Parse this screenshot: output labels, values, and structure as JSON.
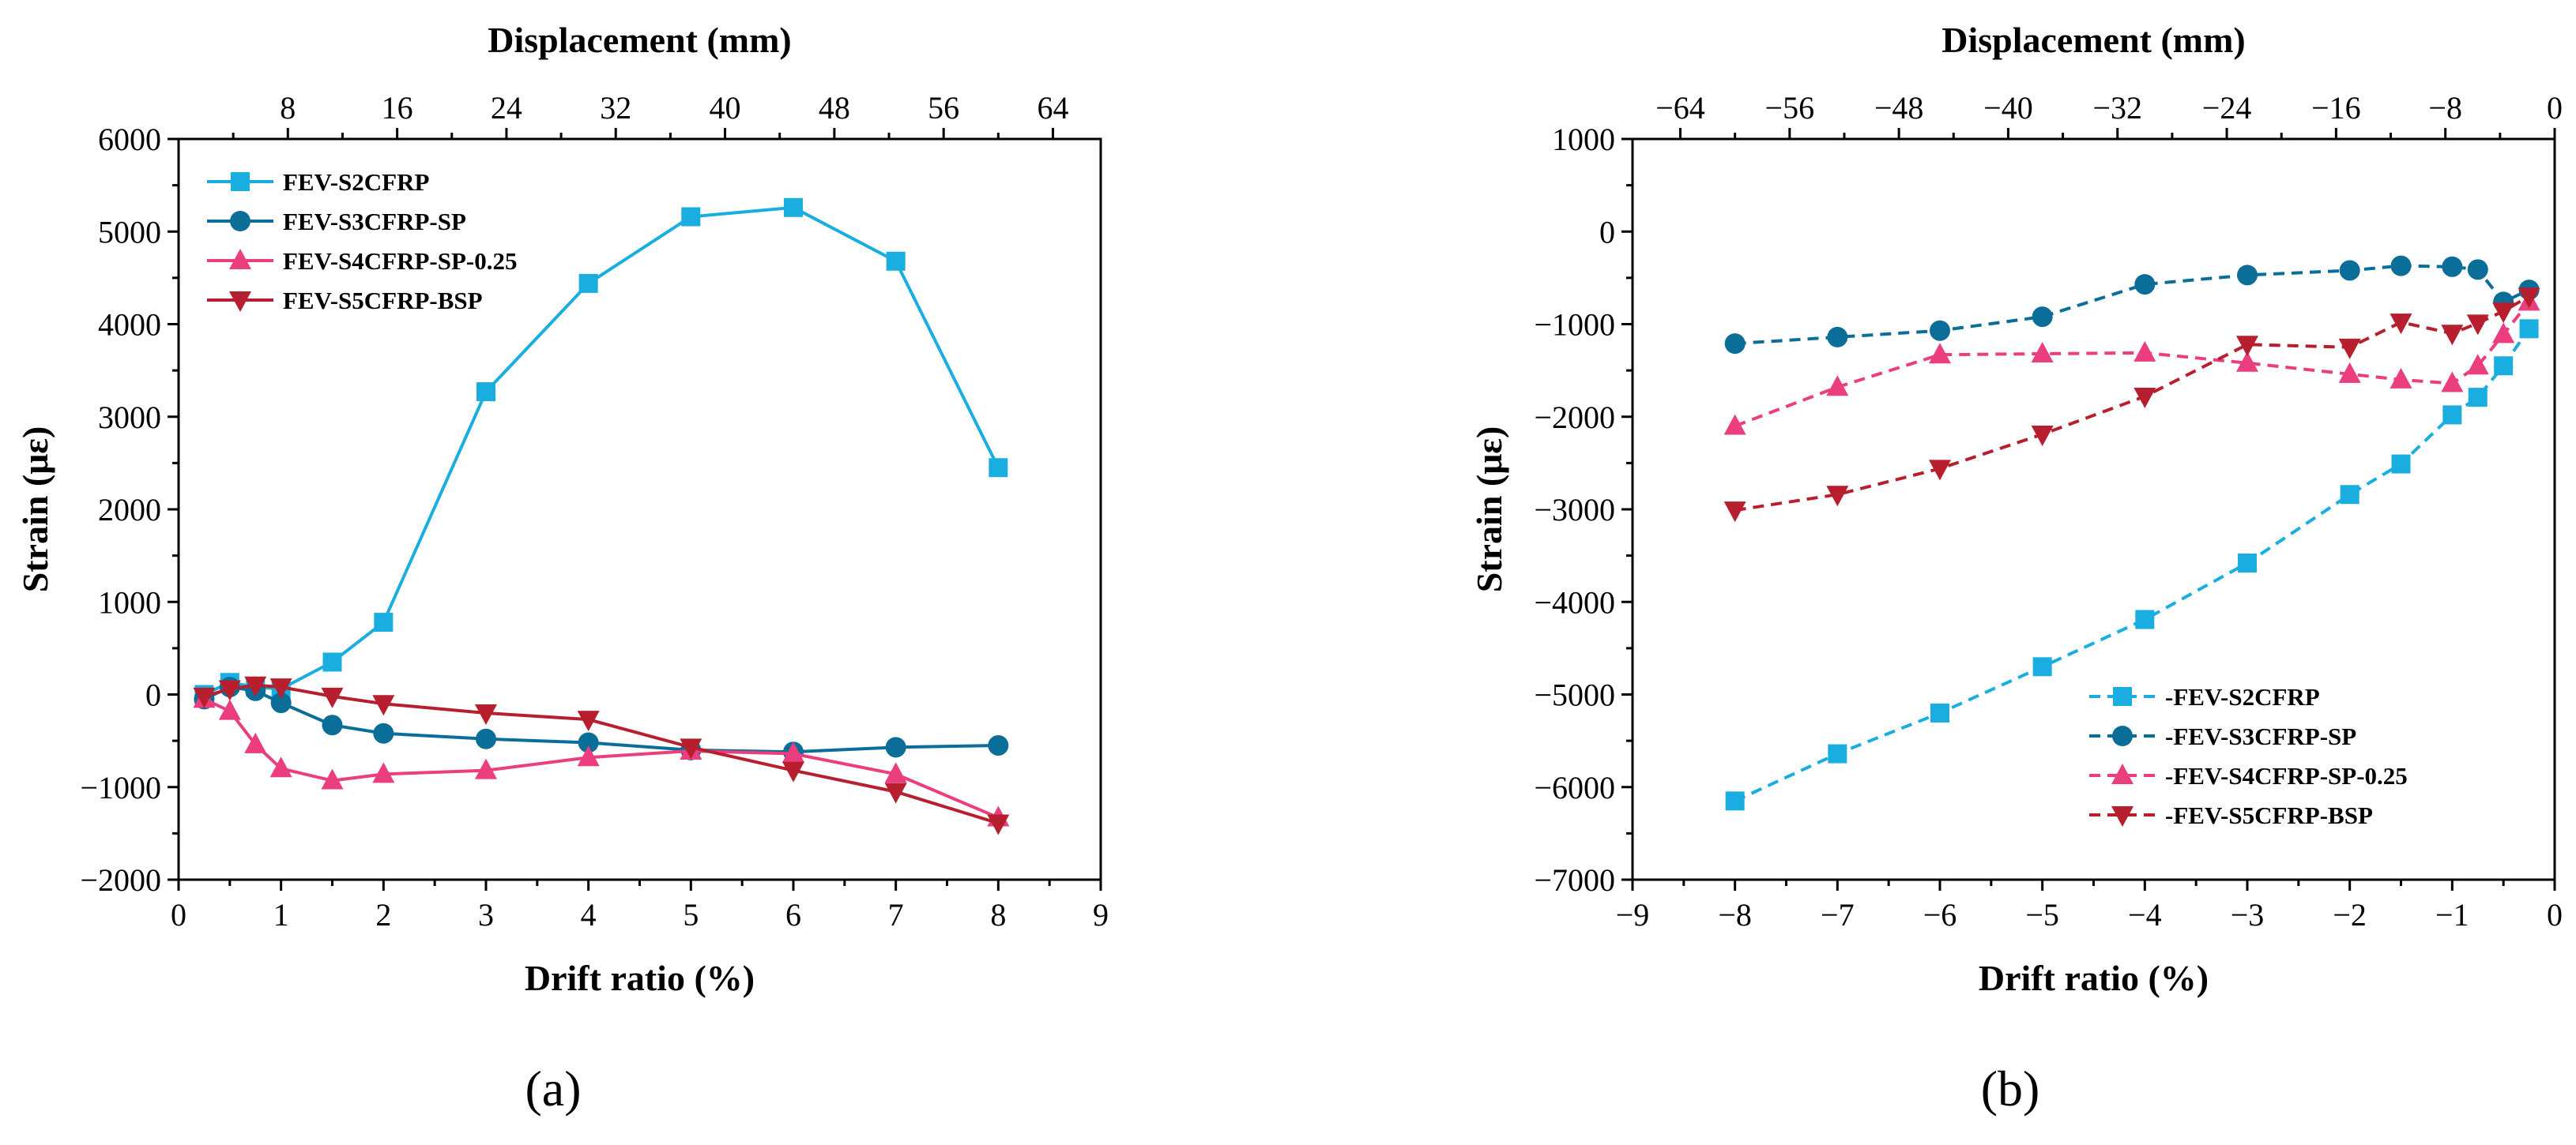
{
  "panels": [
    {
      "caption": "(a)",
      "chart_data": {
        "type": "line",
        "xlabel": "Drift ratio (%)",
        "ylabel": "Strain (με)",
        "x2label": "Displacement (mm)",
        "xlim": [
          0,
          9
        ],
        "ylim": [
          -2000,
          6000
        ],
        "x2lim": [
          0,
          67.5
        ],
        "xticks": [
          0,
          1,
          2,
          3,
          4,
          5,
          6,
          7,
          8,
          9
        ],
        "yticks": [
          -2000,
          -1000,
          0,
          1000,
          2000,
          3000,
          4000,
          5000,
          6000
        ],
        "x2ticks": [
          8,
          16,
          24,
          32,
          40,
          48,
          56,
          64
        ],
        "line_style": "solid",
        "legend_position": "top-left",
        "series": [
          {
            "name": "FEV-S2CFRP",
            "color": "#1aaee0",
            "marker": "square",
            "x": [
              0.25,
              0.5,
              0.75,
              1,
              1.5,
              2,
              3,
              4,
              5,
              6,
              7,
              8
            ],
            "y": [
              0,
              130,
              80,
              60,
              350,
              780,
              3270,
              4440,
              5160,
              5260,
              4680,
              2450
            ]
          },
          {
            "name": "FEV-S3CFRP-SP",
            "color": "#0a6e99",
            "marker": "circle",
            "x": [
              0.25,
              0.5,
              0.75,
              1,
              1.5,
              2,
              3,
              4,
              5,
              6,
              7,
              8
            ],
            "y": [
              -50,
              80,
              40,
              -90,
              -330,
              -420,
              -480,
              -520,
              -600,
              -620,
              -570,
              -550
            ]
          },
          {
            "name": "FEV-S4CFRP-SP-0.25",
            "color": "#ea3e7e",
            "marker": "triangle-up",
            "x": [
              0.25,
              0.5,
              0.75,
              1,
              1.5,
              2,
              3,
              4,
              5,
              6,
              7,
              8
            ],
            "y": [
              -50,
              -180,
              -540,
              -800,
              -930,
              -860,
              -820,
              -680,
              -610,
              -640,
              -860,
              -1330
            ]
          },
          {
            "name": "FEV-S5CFRP-BSP",
            "color": "#b81f2e",
            "marker": "triangle-down",
            "x": [
              0.25,
              0.5,
              0.75,
              1,
              1.5,
              2,
              3,
              4,
              5,
              6,
              7,
              8
            ],
            "y": [
              -20,
              60,
              100,
              80,
              -20,
              -100,
              -200,
              -270,
              -570,
              -820,
              -1050,
              -1390
            ]
          }
        ]
      }
    },
    {
      "caption": "(b)",
      "chart_data": {
        "type": "line",
        "xlabel": "Drift ratio (%)",
        "ylabel": "Strain (με)",
        "x2label": "Displacement (mm)",
        "xlim": [
          -9,
          0
        ],
        "ylim": [
          -7000,
          1000
        ],
        "x2lim": [
          -67.5,
          0
        ],
        "xticks": [
          -9,
          -8,
          -7,
          -6,
          -5,
          -4,
          -3,
          -2,
          -1,
          0
        ],
        "yticks": [
          -7000,
          -6000,
          -5000,
          -4000,
          -3000,
          -2000,
          -1000,
          0,
          1000
        ],
        "x2ticks": [
          -64,
          -56,
          -48,
          -40,
          -32,
          -24,
          -16,
          -8,
          0
        ],
        "line_style": "dashed",
        "legend_position": "bottom-right",
        "series": [
          {
            "name": "-FEV-S2CFRP",
            "color": "#1aaee0",
            "marker": "square",
            "x": [
              -8,
              -7,
              -6,
              -5,
              -4,
              -3,
              -2,
              -1.5,
              -1,
              -0.75,
              -0.5,
              -0.25
            ],
            "y": [
              -6150,
              -5640,
              -5200,
              -4700,
              -4190,
              -3580,
              -2840,
              -2510,
              -1980,
              -1790,
              -1450,
              -1050
            ]
          },
          {
            "name": "-FEV-S3CFRP-SP",
            "color": "#0a6e99",
            "marker": "circle",
            "x": [
              -8,
              -7,
              -6,
              -5,
              -4,
              -3,
              -2,
              -1.5,
              -1,
              -0.75,
              -0.5,
              -0.25
            ],
            "y": [
              -1210,
              -1140,
              -1070,
              -920,
              -570,
              -470,
              -420,
              -370,
              -380,
              -410,
              -760,
              -630
            ]
          },
          {
            "name": "-FEV-S4CFRP-SP-0.25",
            "color": "#ea3e7e",
            "marker": "triangle-up",
            "x": [
              -8,
              -7,
              -6,
              -5,
              -4,
              -3,
              -2,
              -1.5,
              -1,
              -0.75,
              -0.5,
              -0.25
            ],
            "y": [
              -2100,
              -1680,
              -1330,
              -1320,
              -1310,
              -1420,
              -1540,
              -1600,
              -1640,
              -1450,
              -1110,
              -760
            ]
          },
          {
            "name": "-FEV-S5CFRP-BSP",
            "color": "#b81f2e",
            "marker": "triangle-down",
            "x": [
              -8,
              -7,
              -6,
              -5,
              -4,
              -3,
              -2,
              -1.5,
              -1,
              -0.75,
              -0.5,
              -0.25
            ],
            "y": [
              -3010,
              -2840,
              -2560,
              -2190,
              -1780,
              -1220,
              -1250,
              -980,
              -1100,
              -990,
              -860,
              -700
            ]
          }
        ]
      }
    }
  ]
}
